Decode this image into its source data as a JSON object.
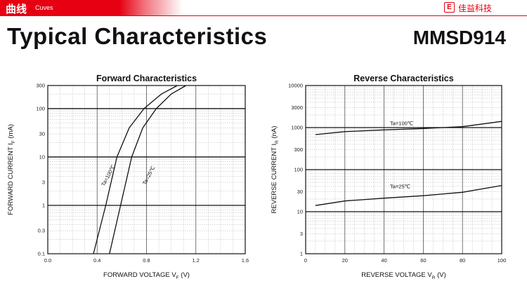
{
  "header": {
    "section_zh": "曲线",
    "section_en": "Cuves",
    "brand_logo": "E",
    "brand_name": "佳益科技"
  },
  "page_title": "Typical Characteristics",
  "part_number": "MMSD914",
  "colors": {
    "accent": "#e60012",
    "ink": "#111111"
  },
  "chart_data": [
    {
      "type": "line",
      "title": "Forward Characteristics",
      "xlabel": "FORWARD VOLTAGE V F (V)",
      "ylabel": "FORWARD CURRENT I F (mA)",
      "xlim": [
        0.0,
        1.6
      ],
      "ylim": [
        0.1,
        300
      ],
      "yscale": "log",
      "x_ticks": [
        "0.0",
        "0.4",
        "0.8",
        "1.2",
        "1.6"
      ],
      "y_ticks": [
        "0.1",
        "0.3",
        "1",
        "3",
        "10",
        "30",
        "100",
        "300"
      ],
      "grid": true,
      "series": [
        {
          "name": "Ta=100℃",
          "x": [
            0.37,
            0.47,
            0.56,
            0.66,
            0.78,
            0.92,
            1.05
          ],
          "y": [
            0.1,
            1,
            10,
            40,
            100,
            200,
            300
          ]
        },
        {
          "name": "Ta=25℃",
          "x": [
            0.5,
            0.59,
            0.68,
            0.77,
            0.88,
            1.0,
            1.12
          ],
          "y": [
            0.1,
            1,
            10,
            40,
            100,
            200,
            300
          ]
        }
      ]
    },
    {
      "type": "line",
      "title": "Reverse Characteristics",
      "xlabel": "REVERSE VOLTAGE V R (V)",
      "ylabel": "REVERSE CURRENT I R (nA)",
      "xlim": [
        0,
        100
      ],
      "ylim": [
        1,
        10000
      ],
      "yscale": "log",
      "x_ticks": [
        "0",
        "20",
        "40",
        "60",
        "80",
        "100"
      ],
      "y_ticks": [
        "1",
        "3",
        "10",
        "30",
        "100",
        "300",
        "1000",
        "3000",
        "10000"
      ],
      "grid": true,
      "series": [
        {
          "name": "Ta=100℃",
          "x": [
            5,
            20,
            40,
            60,
            80,
            100
          ],
          "y": [
            680,
            800,
            880,
            950,
            1050,
            1400
          ]
        },
        {
          "name": "Ta=25℃",
          "x": [
            5,
            20,
            40,
            60,
            80,
            100
          ],
          "y": [
            14,
            18,
            21,
            24,
            29,
            42
          ]
        }
      ]
    }
  ]
}
